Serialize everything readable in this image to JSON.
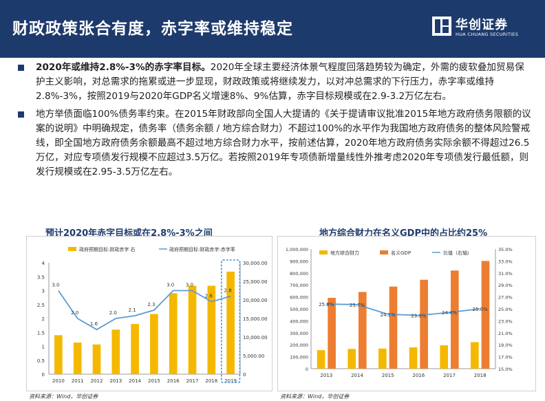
{
  "header": {
    "title": "财政政策张合有度，赤字率或维持稳定",
    "logo_cn": "华创证券",
    "logo_en": "HUA CHUANG SECURITIES"
  },
  "bullets": [
    {
      "bold": "2020年或维持2.8%-3%的赤字率目标。",
      "text": "2020年全球主要经济体景气程度回落趋势较为确定，外需的疲软叠加贸易保护主义影响，对总需求的拖累或进一步显现，财政政策或将继续发力，以对冲总需求的下行压力，赤字率或维持2.8%-3%，按照2019与2020年GDP名义增速8%、9%估算，赤字目标规模或在2.9-3.2万亿左右。"
    },
    {
      "bold": "",
      "text": "地方举债面临100%债务率约束。在2015年财政部向全国人大提请的《关于提请审议批准2015年地方政府债务限额的议案的说明》中明确规定，债务率（债务余额 / 地方综合财力）不超过100%的水平作为我国地方政府债务的整体风险警戒线，即全国地方政府债务余额最高不超过地方综合财力水平，按前述估算，2020年地方政府债务实际余额不得超过26.5万亿，对应专项债发行规模不应超过3.5万亿。若按照2019年专项债新增量线性外推考虑2020年专项债发行最低额，则发行规模或在2.95-3.5万亿左右。"
    }
  ],
  "source_left": "资料来源：Wind，华创证券",
  "source_right": "资料来源：Wind，华创证券",
  "colors": {
    "header_bg": "#1d3a6c",
    "bar_gold": "#f5b800",
    "bar_orange": "#ed7d31",
    "line_blue": "#5b9bd5",
    "highlight_blue": "#4a90d9"
  },
  "chart_data": [
    {
      "type": "bar",
      "title": "预计2020年赤字目标或在2.8%-3%之间",
      "categories": [
        "2010",
        "2011",
        "2012",
        "2013",
        "2014",
        "2015",
        "2016",
        "2017",
        "2018",
        "2019"
      ],
      "series": [
        {
          "name": "政府预期目标:财政赤字 右",
          "type": "bar",
          "axis": "right",
          "values": [
            10500,
            8500,
            8000,
            12000,
            13500,
            16200,
            21800,
            23800,
            23800,
            27600
          ]
        },
        {
          "name": "政府预期目标:财政赤字:赤字率",
          "type": "line",
          "axis": "left",
          "values": [
            3.0,
            2.0,
            1.6,
            2.0,
            2.1,
            2.3,
            3.0,
            3.0,
            2.6,
            2.8
          ],
          "labels": [
            "3.0",
            "2.0",
            "1.6",
            "2.0",
            "2.1",
            "2.3",
            "3.0",
            "3.0",
            "2.6",
            "2.8"
          ]
        }
      ],
      "yleft": {
        "min": 0,
        "max": 4,
        "ticks": [
          "0",
          "0.5",
          "1",
          "1.5",
          "2",
          "2.5",
          "3",
          "3.5",
          "4"
        ]
      },
      "yright": {
        "min": 0,
        "max": 30000,
        "ticks": [
          "0",
          "5,000.00",
          "10,000.00",
          "15,000.00",
          "20,000.00",
          "25,000.00",
          "30,000.00"
        ]
      },
      "highlight_last": true
    },
    {
      "type": "bar",
      "title": "地方综合财力在名义GDP中的占比约25%",
      "categories": [
        "2013",
        "2014",
        "2015",
        "2016",
        "2017",
        "2018"
      ],
      "series": [
        {
          "name": "地方综合财力",
          "type": "bar",
          "axis": "left",
          "values": [
            155000,
            165000,
            168000,
            178000,
            195000,
            222000
          ]
        },
        {
          "name": "名义GDP",
          "type": "bar",
          "axis": "left",
          "values": [
            592000,
            641000,
            686000,
            743000,
            820000,
            900000
          ]
        },
        {
          "name": "比值（右轴）",
          "type": "line",
          "axis": "right",
          "values": [
            25.8,
            25.7,
            24.1,
            23.9,
            24.4,
            25.0
          ],
          "labels": [
            "25.8%",
            "25.7%",
            "24.1%",
            "23.9%",
            "24.4%",
            "25.0%"
          ]
        }
      ],
      "yleft": {
        "min": 0,
        "max": 1000000,
        "ticks": [
          "0",
          "100,000",
          "200,000",
          "300,000",
          "400,000",
          "500,000",
          "600,000",
          "700,000",
          "800,000",
          "900,000",
          "1,000,000"
        ]
      },
      "yright": {
        "min": 15,
        "max": 35,
        "ticks": [
          "15.0%",
          "17.0%",
          "19.0%",
          "21.0%",
          "23.0%",
          "25.0%",
          "27.0%",
          "29.0%",
          "31.0%",
          "33.0%",
          "35.0%"
        ]
      },
      "legend_position": "top"
    }
  ]
}
